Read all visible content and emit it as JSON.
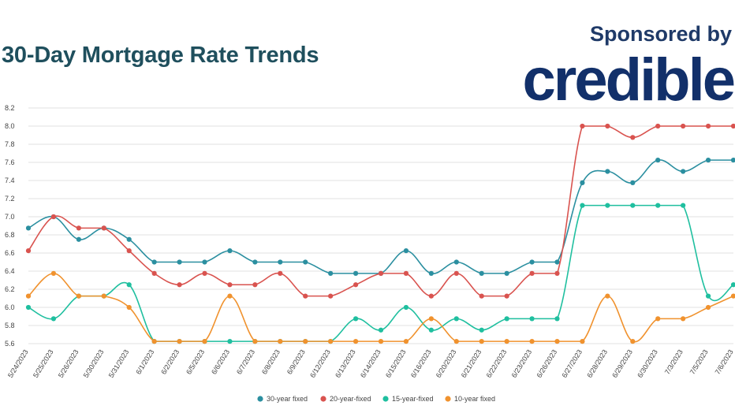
{
  "header": {
    "title": "30-Day Mortgage Rate Trends",
    "sponsor_text": "Sponsored by",
    "sponsor_brand": "credible"
  },
  "chart_data": {
    "type": "line",
    "title": "30-Day Mortgage Rate Trends",
    "xlabel": "",
    "ylabel": "",
    "ylim": [
      5.6,
      8.2
    ],
    "yticks": [
      5.6,
      5.8,
      6.0,
      6.2,
      6.4,
      6.6,
      6.8,
      7.0,
      7.2,
      7.4,
      7.6,
      7.8,
      8.0,
      8.2
    ],
    "grid": true,
    "legend_position": "bottom",
    "categories": [
      "5/24/2023",
      "5/25/2023",
      "5/26/2023",
      "5/30/2023",
      "5/31/2023",
      "6/1/2023",
      "6/2/2023",
      "6/5/2023",
      "6/6/2023",
      "6/7/2023",
      "6/8/2023",
      "6/9/2023",
      "6/12/2023",
      "6/13/2023",
      "6/14/2023",
      "6/15/2023",
      "6/16/2023",
      "6/20/2023",
      "6/21/2023",
      "6/22/2023",
      "6/23/2023",
      "6/26/2023",
      "6/27/2023",
      "6/28/2023",
      "6/29/2023",
      "6/30/2023",
      "7/3/2023",
      "7/5/2023",
      "7/6/2023"
    ],
    "series": [
      {
        "name": "30-year fixed",
        "color": "#2b8fa0",
        "values": [
          6.875,
          7.0,
          6.75,
          6.875,
          6.75,
          6.5,
          6.5,
          6.5,
          6.625,
          6.5,
          6.5,
          6.5,
          6.375,
          6.375,
          6.375,
          6.625,
          6.375,
          6.5,
          6.375,
          6.375,
          6.5,
          6.5,
          7.375,
          7.5,
          7.375,
          7.625,
          7.5,
          7.625,
          7.625
        ]
      },
      {
        "name": "20-year-fixed",
        "color": "#d9534f",
        "values": [
          6.625,
          7.0,
          6.875,
          6.875,
          6.625,
          6.375,
          6.25,
          6.375,
          6.25,
          6.25,
          6.375,
          6.125,
          6.125,
          6.25,
          6.375,
          6.375,
          6.125,
          6.375,
          6.125,
          6.125,
          6.375,
          6.375,
          8.0,
          8.0,
          7.875,
          8.0,
          8.0,
          8.0,
          8.0
        ]
      },
      {
        "name": "15-year-fixed",
        "color": "#1fbf9f",
        "values": [
          6.0,
          5.875,
          6.125,
          6.125,
          6.25,
          5.625,
          5.625,
          5.625,
          5.625,
          5.625,
          5.625,
          5.625,
          5.625,
          5.875,
          5.75,
          6.0,
          5.75,
          5.875,
          5.75,
          5.875,
          5.875,
          5.875,
          7.125,
          7.125,
          7.125,
          7.125,
          7.125,
          6.125,
          6.25
        ]
      },
      {
        "name": "10-year fixed",
        "color": "#f0922e",
        "values": [
          6.125,
          6.375,
          6.125,
          6.125,
          6.0,
          5.625,
          5.625,
          5.625,
          6.125,
          5.625,
          5.625,
          5.625,
          5.625,
          5.625,
          5.625,
          5.625,
          5.875,
          5.625,
          5.625,
          5.625,
          5.625,
          5.625,
          5.625,
          6.125,
          5.625,
          5.875,
          5.875,
          6.0,
          6.125
        ]
      }
    ]
  }
}
